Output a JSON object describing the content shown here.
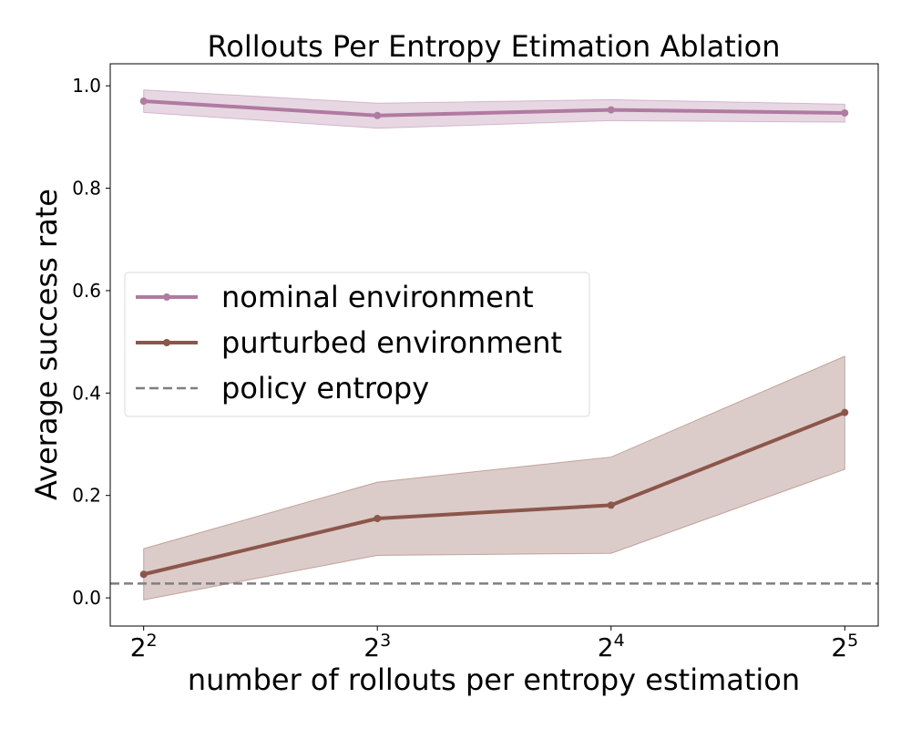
{
  "chart_data": {
    "type": "line",
    "title": "Rollouts Per Entropy Etimation Ablation",
    "xlabel": "number of rollouts per entropy estimation",
    "ylabel": "Average success rate",
    "x_scale": "log2",
    "x": [
      4,
      8,
      16,
      32
    ],
    "x_tick_labels": [
      {
        "base": "2",
        "exp": "2"
      },
      {
        "base": "2",
        "exp": "3"
      },
      {
        "base": "2",
        "exp": "4"
      },
      {
        "base": "2",
        "exp": "5"
      }
    ],
    "ylim": [
      -0.055,
      1.043
    ],
    "y_ticks": [
      0.0,
      0.2,
      0.4,
      0.6,
      0.8,
      1.0
    ],
    "y_tick_labels": [
      "0.0",
      "0.2",
      "0.4",
      "0.6",
      "0.8",
      "1.0"
    ],
    "grid": false,
    "legend_position": "center-left",
    "series": [
      {
        "name": "nominal environment",
        "color": "#b07aa1",
        "values": [
          0.97,
          0.942,
          0.953,
          0.947
        ],
        "lower": [
          0.948,
          0.917,
          0.932,
          0.929
        ],
        "upper": [
          0.992,
          0.966,
          0.973,
          0.964
        ]
      },
      {
        "name": "purturbed environment",
        "color": "#8c564b",
        "values": [
          0.046,
          0.155,
          0.181,
          0.362
        ],
        "lower": [
          -0.004,
          0.083,
          0.087,
          0.251
        ],
        "upper": [
          0.096,
          0.226,
          0.275,
          0.472
        ]
      }
    ],
    "reference_lines": [
      {
        "name": "policy entropy",
        "y": 0.028,
        "color": "#7f7f7f",
        "style": "dashed"
      }
    ]
  }
}
